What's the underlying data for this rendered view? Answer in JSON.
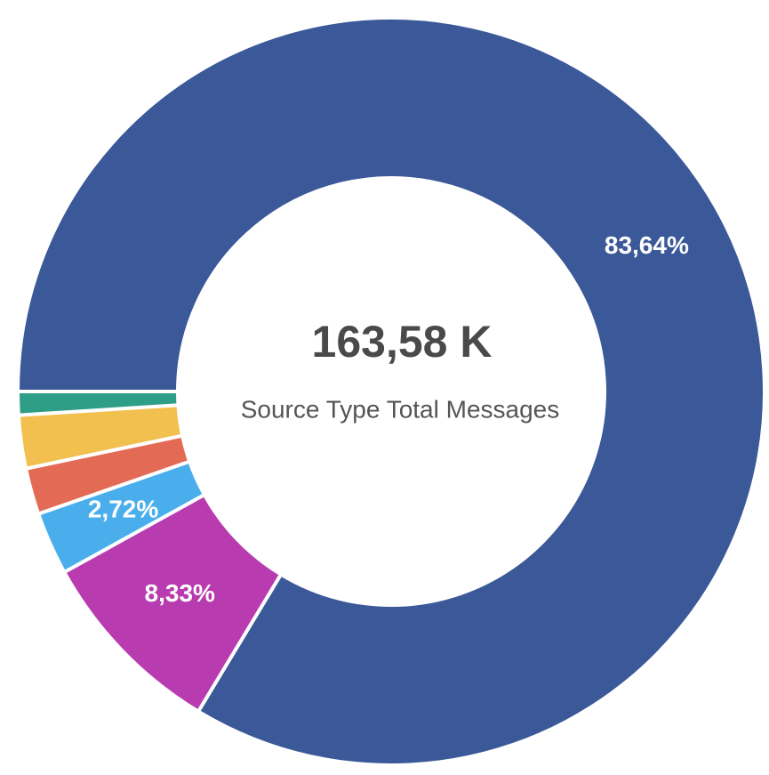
{
  "chart_data": {
    "type": "donut",
    "center_value": "163,58 K",
    "center_label": "Source Type Total Messages",
    "values": [
      83.64,
      8.33,
      2.72,
      2.0,
      2.3,
      1.01
    ],
    "value_labels": [
      "83,64%",
      "8,33%",
      "2,72%",
      null,
      null,
      null
    ],
    "colors": [
      "#3b5998",
      "#b83bb0",
      "#4aaeec",
      "#e36a55",
      "#f1c04f",
      "#2e9e86"
    ],
    "start_angle": 270
  }
}
